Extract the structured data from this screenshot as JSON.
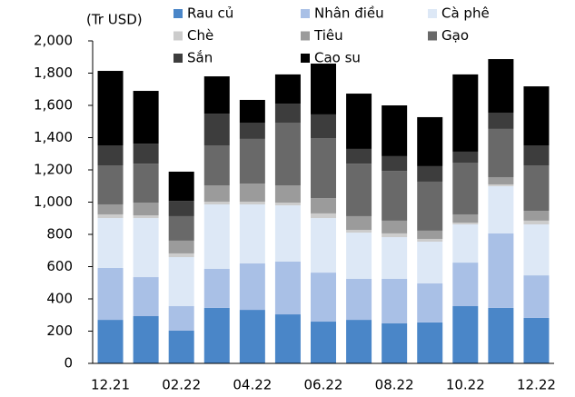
{
  "chart_data": {
    "type": "bar",
    "stacked": true,
    "y_label": "(Tr USD)",
    "categories": [
      "12.21",
      null,
      "02.22",
      null,
      "04.22",
      null,
      "06.22",
      null,
      "08.22",
      null,
      "10.22",
      null,
      "12.22"
    ],
    "series": [
      {
        "name": "Rau củ",
        "color": "#4a86c8",
        "values": [
          270,
          293,
          203,
          344,
          332,
          304,
          259,
          270,
          248,
          254,
          355,
          344,
          282
        ]
      },
      {
        "name": "Nhân điều",
        "color": "#a9c0e6",
        "values": [
          322,
          242,
          152,
          242,
          288,
          327,
          304,
          254,
          276,
          242,
          270,
          462,
          264
        ]
      },
      {
        "name": "Cà phê",
        "color": "#dde8f6",
        "values": [
          309,
          366,
          304,
          400,
          366,
          349,
          338,
          287,
          259,
          259,
          237,
          293,
          316
        ]
      },
      {
        "name": "Chè",
        "color": "#cccccc",
        "values": [
          23,
          17,
          23,
          17,
          17,
          17,
          29,
          17,
          23,
          17,
          11,
          11,
          23
        ]
      },
      {
        "name": "Tiêu",
        "color": "#9b9b9b",
        "values": [
          62,
          79,
          79,
          101,
          112,
          107,
          95,
          85,
          79,
          51,
          51,
          45,
          61
        ]
      },
      {
        "name": "Gạo",
        "color": "#696969",
        "values": [
          242,
          242,
          152,
          248,
          277,
          389,
          372,
          326,
          309,
          304,
          321,
          299,
          282
        ]
      },
      {
        "name": "Sắn",
        "color": "#3d3d3d",
        "values": [
          124,
          124,
          95,
          197,
          101,
          118,
          147,
          91,
          91,
          96,
          68,
          101,
          124
        ]
      },
      {
        "name": "Cao su",
        "color": "#000000",
        "values": [
          462,
          327,
          181,
          231,
          141,
          181,
          315,
          343,
          315,
          304,
          479,
          332,
          366
        ]
      }
    ],
    "ylim": [
      0,
      2000
    ],
    "yticks": [
      0,
      200,
      400,
      600,
      800,
      {
        "value": 1000,
        "label": "1,000"
      },
      {
        "value": 1200,
        "label": "1,200"
      },
      {
        "value": 1400,
        "label": "1,400"
      },
      {
        "value": 1600,
        "label": "1,600"
      },
      {
        "value": 1800,
        "label": "1,800"
      },
      {
        "value": 2000,
        "label": "2,000"
      }
    ],
    "grid": false
  }
}
